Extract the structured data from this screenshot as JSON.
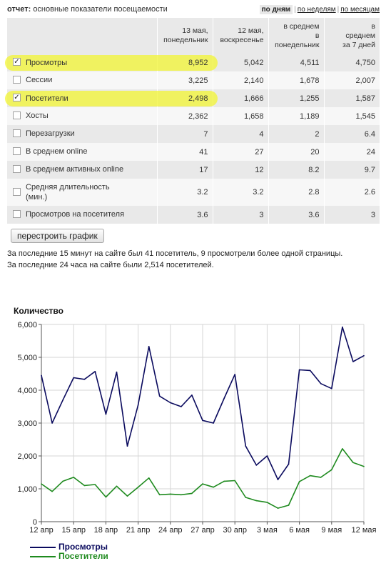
{
  "header": {
    "report_prefix": "отчет:",
    "report_title": "основные показатели посещаемости",
    "period_day": "по дням",
    "period_week": "по неделям",
    "period_month": "по месяцам"
  },
  "table": {
    "columns": [
      {
        "line1": "13 мая,",
        "line2": "понедельник",
        "line3": ""
      },
      {
        "line1": "12 мая,",
        "line2": "воскресенье",
        "line3": ""
      },
      {
        "line1": "в среднем",
        "line2": "в",
        "line3": "понедельник"
      },
      {
        "line1": "в",
        "line2": "среднем",
        "line3": "за 7 дней"
      }
    ],
    "rows": [
      {
        "label": "Просмотры",
        "checked": true,
        "values": [
          "8,952",
          "5,042",
          "4,511",
          "4,750"
        ]
      },
      {
        "label": "Сессии",
        "checked": false,
        "values": [
          "3,225",
          "2,140",
          "1,678",
          "2,007"
        ]
      },
      {
        "label": "Посетители",
        "checked": true,
        "values": [
          "2,498",
          "1,666",
          "1,255",
          "1,587"
        ]
      },
      {
        "label": "Хосты",
        "checked": false,
        "values": [
          "2,362",
          "1,658",
          "1,189",
          "1,545"
        ]
      },
      {
        "label": "Перезагрузки",
        "checked": false,
        "values": [
          "7",
          "4",
          "2",
          "6.4"
        ]
      },
      {
        "label": "В среднем online",
        "checked": false,
        "values": [
          "41",
          "27",
          "20",
          "24"
        ]
      },
      {
        "label": "В среднем активных online",
        "checked": false,
        "values": [
          "17",
          "12",
          "8.2",
          "9.7"
        ]
      },
      {
        "label": "Средняя длительность",
        "label2": "(мин.)",
        "checked": false,
        "values": [
          "3.2",
          "3.2",
          "2.8",
          "2.6"
        ]
      },
      {
        "label": "Просмотров на посетителя",
        "checked": false,
        "values": [
          "3.6",
          "3",
          "3.6",
          "3"
        ]
      }
    ]
  },
  "rebuild_button": "перестроить график",
  "info": {
    "line1": "За последние 15 минут на сайте был 41 посетитель, 9 просмотрели более одной страницы.",
    "line2": "За последние 24 часа на сайте были 2,514 посетителей."
  },
  "highlight_color": "#f2f53a",
  "chart_data": {
    "type": "line",
    "title": "Количество",
    "xlabel": "",
    "ylabel": "",
    "ylim": [
      0,
      6000
    ],
    "yticks": [
      "0",
      "1,000",
      "2,000",
      "3,000",
      "4,000",
      "5,000",
      "6,000"
    ],
    "x_tick_labels": [
      "12 апр",
      "15 апр",
      "18 апр",
      "21 апр",
      "24 апр",
      "27 апр",
      "30 апр",
      "3 мая",
      "6 мая",
      "9 мая",
      "12 мая"
    ],
    "grid": true,
    "legend_position": "bottom-left",
    "series": [
      {
        "name": "Просмотры",
        "color": "#0a0a5e",
        "values": [
          4450,
          3000,
          3700,
          4380,
          4330,
          4570,
          3270,
          4550,
          2300,
          3550,
          5330,
          3820,
          3620,
          3500,
          3850,
          3080,
          3000,
          3750,
          4480,
          2300,
          1720,
          2000,
          1280,
          1750,
          4620,
          4600,
          4200,
          4050,
          5920,
          4870,
          5050
        ]
      },
      {
        "name": "Посетители",
        "color": "#1e8a1e",
        "values": [
          1150,
          920,
          1230,
          1350,
          1100,
          1130,
          750,
          1080,
          780,
          1050,
          1330,
          820,
          840,
          820,
          860,
          1150,
          1050,
          1230,
          1250,
          740,
          640,
          590,
          410,
          500,
          1220,
          1400,
          1350,
          1580,
          2220,
          1800,
          1680
        ]
      }
    ]
  }
}
